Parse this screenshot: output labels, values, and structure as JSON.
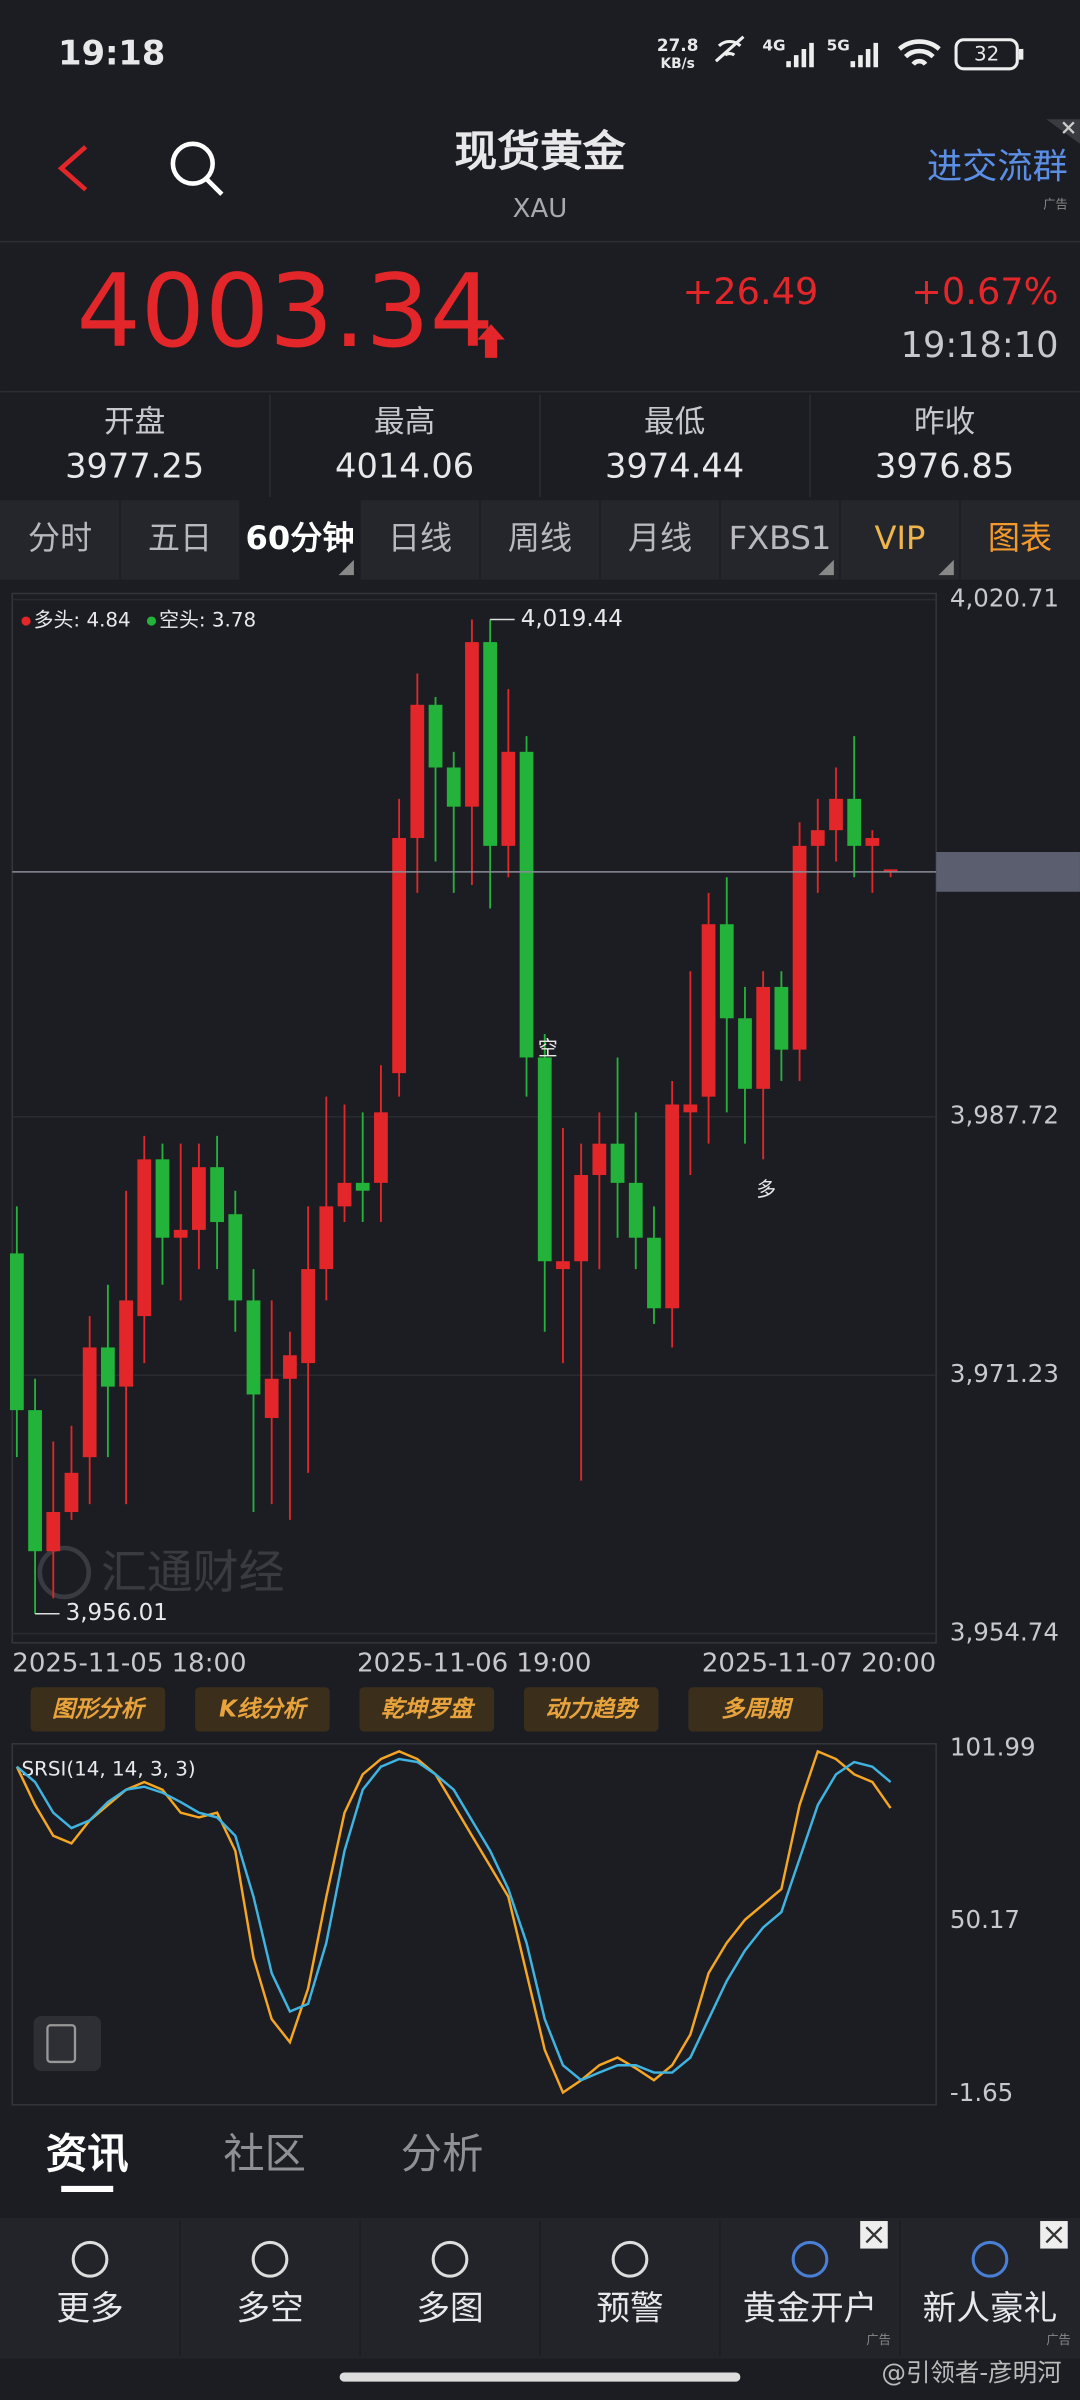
{
  "status": {
    "time": "19:18",
    "speed": [
      "27.8",
      "KB/s"
    ],
    "net1": "4G",
    "net2": "5G",
    "battery": "32"
  },
  "header": {
    "title": "现货黄金",
    "subtitle": "XAU",
    "ad_button": "进交流群",
    "ad_tag": "广告"
  },
  "quote": {
    "price": "4003.34",
    "change": "+26.49",
    "change_pct": "+0.67%",
    "time": "19:18:10"
  },
  "stats": [
    {
      "label": "开盘",
      "value": "3977.25"
    },
    {
      "label": "最高",
      "value": "4014.06"
    },
    {
      "label": "最低",
      "value": "3974.44"
    },
    {
      "label": "昨收",
      "value": "3976.85"
    }
  ],
  "tabs": [
    "分时",
    "五日",
    "60分钟",
    "日线",
    "周线",
    "月线",
    "FXBS1",
    "VIP",
    "图表"
  ],
  "chart_data": [
    {
      "type": "candlestick",
      "legend": [
        {
          "label": "多头: 4.84",
          "color": "#e3262a"
        },
        {
          "label": "空头: 3.78",
          "color": "#23b33a"
        }
      ],
      "up_color": "#e3262a",
      "down_color": "#23b33a",
      "x_labels": [
        "2025-11-05 18:00",
        "2025-11-06 19:00",
        "2025-11-07 20:00"
      ],
      "ylim": [
        3954.74,
        4020.71
      ],
      "yticks": [
        {
          "value": 4020.71,
          "label": "4,020.71"
        },
        {
          "value": 3987.72,
          "label": "3,987.72"
        },
        {
          "value": 3971.23,
          "label": "3,971.23"
        },
        {
          "value": 3954.74,
          "label": "3,954.74"
        }
      ],
      "last_price": 4003.34,
      "annotations": [
        {
          "text": "4,019.44",
          "value": 4019.44,
          "index": 26
        },
        {
          "text": "3,956.01",
          "value": 3956.01,
          "index": 1
        },
        {
          "text": "空",
          "value": 3992,
          "index": 29
        },
        {
          "text": "多",
          "value": 3983,
          "index": 41
        }
      ],
      "watermark": "汇通财经",
      "open": [
        3979,
        3969,
        3960,
        3962.5,
        3966,
        3973,
        3970.5,
        3975,
        3985,
        3980,
        3980.5,
        3984.5,
        3981.5,
        3976,
        3968.5,
        3971,
        3972,
        3978,
        3982,
        3983.5,
        3983.5,
        3990.5,
        4005.5,
        4014,
        4010,
        4007.5,
        4018,
        4005,
        4011,
        3991.5,
        3978,
        3978.5,
        3984,
        3986,
        3983.5,
        3980,
        3975.5,
        3988,
        3989,
        4000,
        3994,
        3989.5,
        3996,
        3992,
        4005,
        4006,
        4008,
        4005,
        4003.3
      ],
      "high": [
        3982,
        3971,
        3967,
        3968,
        3975,
        3977,
        3983,
        3986.5,
        3986,
        3986,
        3986,
        3986.5,
        3983,
        3978,
        3976,
        3974,
        3982,
        3989,
        3988.5,
        3988,
        3991,
        4008,
        4016,
        4014.5,
        4011,
        4019.44,
        4019.44,
        4015,
        4012,
        3993,
        3987,
        3986,
        3988,
        3991.5,
        3988,
        3982,
        3990,
        3997,
        4002,
        4003,
        3996,
        3997,
        3997,
        4006.5,
        4008,
        4010,
        4012,
        4006,
        4003.5
      ],
      "low": [
        3966,
        3956,
        3957,
        3962,
        3963,
        3966,
        3963,
        3972,
        3977,
        3976,
        3978,
        3978,
        3974,
        3962.5,
        3963,
        3962,
        3965,
        3976,
        3981,
        3981,
        3981,
        3989,
        4002,
        4004,
        4002,
        4002.5,
        4001,
        4003,
        3989,
        3974,
        3972,
        3964.5,
        3978,
        3980,
        3978,
        3974.5,
        3973,
        3984,
        3986,
        3988,
        3986,
        3985,
        3990,
        3990,
        4002,
        4004,
        4003,
        4002,
        4003
      ],
      "close": [
        3969,
        3960,
        3962.5,
        3965,
        3973,
        3970.5,
        3976,
        3985,
        3980,
        3980.5,
        3984.5,
        3981,
        3976,
        3970,
        3971,
        3972.5,
        3978,
        3982,
        3983.5,
        3983,
        3988,
        4005.5,
        4014,
        4010,
        4007.5,
        4018,
        4005,
        4011,
        3991.5,
        3978.5,
        3978.5,
        3984,
        3986,
        3983.5,
        3980,
        3975.5,
        3988.5,
        3988.5,
        4000,
        3994,
        3989.5,
        3996,
        3992,
        4005,
        4006,
        4008,
        4005,
        4005.5,
        4003.5
      ]
    },
    {
      "type": "line",
      "title": "SRSI(14, 14, 3, 3)",
      "ylim": [
        -1.65,
        101.99
      ],
      "yticks": [
        101.99,
        50.17,
        -1.65
      ],
      "series": [
        {
          "color": "#f5a623",
          "values": [
            96.5,
            85.0,
            75.8,
            73.5,
            80.4,
            85.0,
            89.6,
            91.9,
            89.6,
            82.7,
            81.3,
            82.7,
            71.3,
            39.2,
            20.8,
            13.9,
            30.0,
            57.5,
            82.7,
            94.2,
            98.8,
            101.1,
            98.8,
            94.2,
            85.0,
            75.8,
            66.7,
            57.5,
            34.6,
            11.6,
            -1.2,
            2.5,
            7.0,
            9.3,
            6.1,
            2.5,
            7.0,
            16.2,
            34.6,
            43.7,
            50.6,
            55.2,
            59.8,
            85.0,
            101.1,
            98.8,
            94.2,
            91.9,
            84.1
          ]
        },
        {
          "color": "#3fb4e0",
          "values": [
            96.5,
            91.9,
            82.7,
            78.1,
            80.4,
            85.9,
            89.6,
            90.5,
            88.7,
            85.9,
            82.7,
            81.3,
            75.8,
            57.5,
            34.6,
            23.1,
            25.4,
            43.7,
            71.3,
            89.6,
            96.5,
            98.8,
            97.9,
            94.2,
            89.6,
            80.4,
            71.3,
            59.8,
            43.7,
            20.8,
            7.0,
            2.5,
            4.8,
            7.0,
            7.0,
            4.8,
            4.8,
            9.3,
            20.8,
            32.3,
            41.4,
            48.3,
            52.9,
            68.9,
            85.0,
            94.2,
            97.9,
            96.5,
            91.9
          ]
        }
      ]
    }
  ],
  "tools": [
    "图形分析",
    "K线分析",
    "乾坤罗盘",
    "动力趋势",
    "多周期"
  ],
  "content_tabs": [
    "资讯",
    "社区",
    "分析"
  ],
  "nav": [
    "更多",
    "多空",
    "多图",
    "预警",
    "黄金开户",
    "新人豪礼"
  ],
  "nav_ad": "广告",
  "credit": "@引领者-彦明河"
}
